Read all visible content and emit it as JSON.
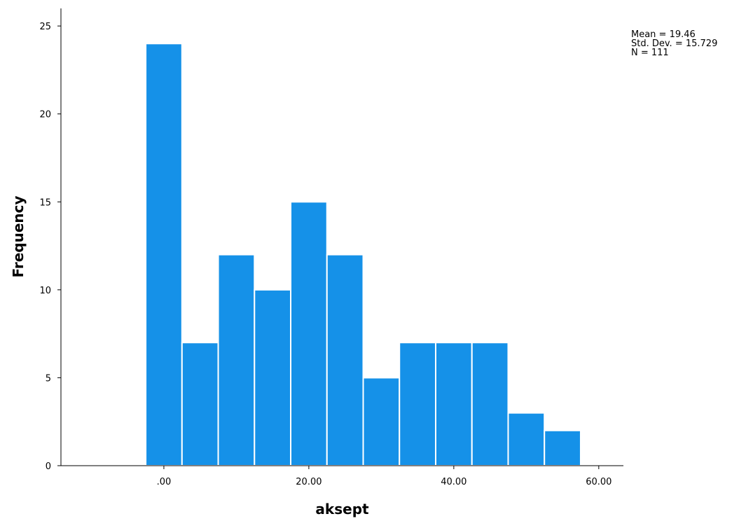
{
  "chart_data": {
    "type": "bar",
    "xlabel": "aksept",
    "ylabel": "Frequency",
    "bin_width": 5,
    "bins": [
      {
        "start": -2.5,
        "end": 2.5,
        "count": 24
      },
      {
        "start": 2.5,
        "end": 7.5,
        "count": 7
      },
      {
        "start": 7.5,
        "end": 12.5,
        "count": 12
      },
      {
        "start": 12.5,
        "end": 17.5,
        "count": 10
      },
      {
        "start": 17.5,
        "end": 22.5,
        "count": 15
      },
      {
        "start": 22.5,
        "end": 27.5,
        "count": 12
      },
      {
        "start": 27.5,
        "end": 32.5,
        "count": 5
      },
      {
        "start": 32.5,
        "end": 37.5,
        "count": 7
      },
      {
        "start": 37.5,
        "end": 42.5,
        "count": 7
      },
      {
        "start": 42.5,
        "end": 47.5,
        "count": 7
      },
      {
        "start": 47.5,
        "end": 52.5,
        "count": 3
      },
      {
        "start": 52.5,
        "end": 57.5,
        "count": 2
      }
    ],
    "xlim": [
      -14.2,
      63.4
    ],
    "ylim": [
      0,
      26
    ],
    "x_ticks": [
      0,
      20,
      40,
      60
    ],
    "x_tick_labels": [
      ".00",
      "20.00",
      "40.00",
      "60.00"
    ],
    "y_ticks": [
      0,
      5,
      10,
      15,
      20,
      25
    ],
    "y_tick_labels": [
      "0",
      "5",
      "10",
      "15",
      "20",
      "25"
    ],
    "bar_color": "#1591e8",
    "bar_edge_color": "#ffffff",
    "stats": {
      "mean": "Mean = 19.46",
      "std": "Std. Dev. = 15.729",
      "n": "N = 111"
    }
  }
}
